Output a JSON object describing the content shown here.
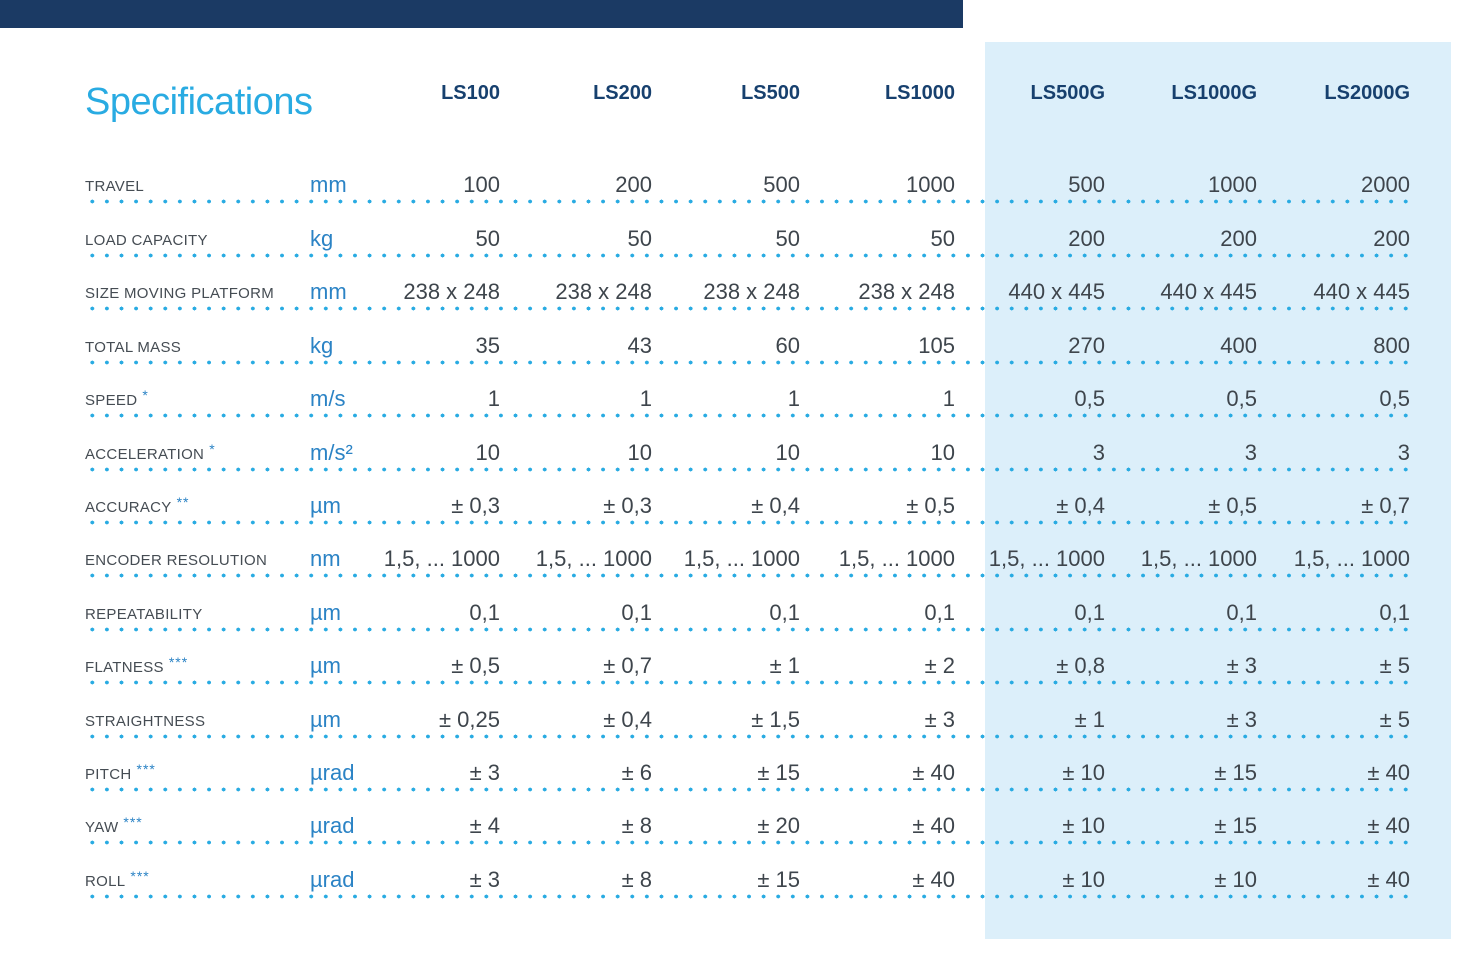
{
  "title": "Specifications",
  "columns": [
    "LS100",
    "LS200",
    "LS500",
    "LS1000",
    "LS500G",
    "LS1000G",
    "LS2000G"
  ],
  "highlighted_columns": [
    "LS500G",
    "LS1000G",
    "LS2000G"
  ],
  "rows": [
    {
      "label": "TRAVEL",
      "footnote": "",
      "unit": "mm",
      "values": [
        "100",
        "200",
        "500",
        "1000",
        "500",
        "1000",
        "2000"
      ]
    },
    {
      "label": "LOAD CAPACITY",
      "footnote": "",
      "unit": "kg",
      "values": [
        "50",
        "50",
        "50",
        "50",
        "200",
        "200",
        "200"
      ]
    },
    {
      "label": "SIZE MOVING PLATFORM",
      "footnote": "",
      "unit": "mm",
      "values": [
        "238 x 248",
        "238 x 248",
        "238 x 248",
        "238 x 248",
        "440 x 445",
        "440 x 445",
        "440 x 445"
      ]
    },
    {
      "label": "TOTAL MASS",
      "footnote": "",
      "unit": "kg",
      "values": [
        "35",
        "43",
        "60",
        "105",
        "270",
        "400",
        "800"
      ]
    },
    {
      "label": "SPEED",
      "footnote": "*",
      "unit": "m/s",
      "values": [
        "1",
        "1",
        "1",
        "1",
        "0,5",
        "0,5",
        "0,5"
      ]
    },
    {
      "label": "ACCELERATION",
      "footnote": "*",
      "unit": "m/s²",
      "values": [
        "10",
        "10",
        "10",
        "10",
        "3",
        "3",
        "3"
      ]
    },
    {
      "label": "ACCURACY",
      "footnote": "**",
      "unit": "µm",
      "values": [
        "± 0,3",
        "± 0,3",
        "± 0,4",
        "± 0,5",
        "± 0,4",
        "± 0,5",
        "± 0,7"
      ]
    },
    {
      "label": "ENCODER RESOLUTION",
      "footnote": "",
      "unit": "nm",
      "values": [
        "1,5, ... 1000",
        "1,5, ... 1000",
        "1,5, ... 1000",
        "1,5, ... 1000",
        "1,5, ... 1000",
        "1,5, ... 1000",
        "1,5, ... 1000"
      ]
    },
    {
      "label": "REPEATABILITY",
      "footnote": "",
      "unit": "µm",
      "values": [
        "0,1",
        "0,1",
        "0,1",
        "0,1",
        "0,1",
        "0,1",
        "0,1"
      ]
    },
    {
      "label": "FLATNESS",
      "footnote": "***",
      "unit": "µm",
      "values": [
        "± 0,5",
        "± 0,7",
        "± 1",
        "± 2",
        "± 0,8",
        "± 3",
        "± 5"
      ]
    },
    {
      "label": "STRAIGHTNESS",
      "footnote": "",
      "unit": "µm",
      "values": [
        "± 0,25",
        "± 0,4",
        "± 1,5",
        "± 3",
        "± 1",
        "± 3",
        "± 5"
      ]
    },
    {
      "label": "PITCH",
      "footnote": "***",
      "unit": "µrad",
      "values": [
        "± 3",
        "± 6",
        "± 15",
        "± 40",
        "± 10",
        "± 15",
        "± 40"
      ]
    },
    {
      "label": "YAW",
      "footnote": "***",
      "unit": "µrad",
      "values": [
        "± 4",
        "± 8",
        "± 20",
        "± 40",
        "± 10",
        "± 15",
        "± 40"
      ]
    },
    {
      "label": "ROLL",
      "footnote": "***",
      "unit": "µrad",
      "values": [
        "± 3",
        "± 8",
        "± 15",
        "± 40",
        "± 10",
        "± 10",
        "± 40"
      ]
    }
  ],
  "colors": {
    "accent_blue": "#29ABE2",
    "header_navy": "#17406E",
    "unit_blue": "#2B83C5",
    "label_gray": "#454C53",
    "value_gray": "#3E454C",
    "highlight_bg": "#DCEFFA",
    "topbar_navy": "#1B3A64",
    "dot_blue": "#29ABE2"
  }
}
